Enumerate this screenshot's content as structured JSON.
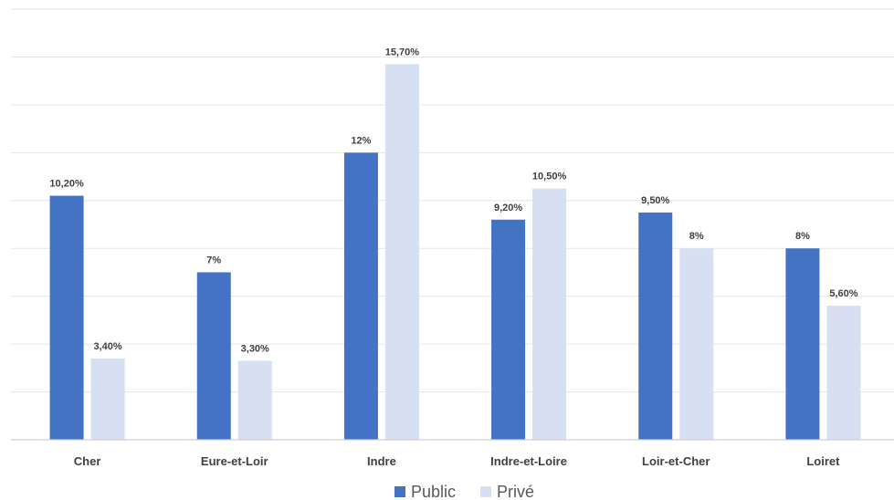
{
  "chart_data": {
    "type": "bar",
    "categories": [
      "Cher",
      "Eure-et-Loir",
      "Indre",
      "Indre-et-Loire",
      "Loir-et-Cher",
      "Loiret"
    ],
    "series": [
      {
        "name": "Public",
        "color": "#4472c4",
        "values": [
          10.2,
          7,
          12,
          9.2,
          9.5,
          8
        ],
        "labels": [
          "10,20%",
          "7%",
          "12%",
          "9,20%",
          "9,50%",
          "8%"
        ]
      },
      {
        "name": "Privé",
        "color": "#d6e0f2",
        "values": [
          3.4,
          3.3,
          15.7,
          10.5,
          8,
          5.6
        ],
        "labels": [
          "3,40%",
          "3,30%",
          "15,70%",
          "10,50%",
          "8%",
          "5,60%"
        ]
      }
    ],
    "ylim": [
      0,
      18
    ],
    "grid": true,
    "legend_position": "bottom"
  }
}
